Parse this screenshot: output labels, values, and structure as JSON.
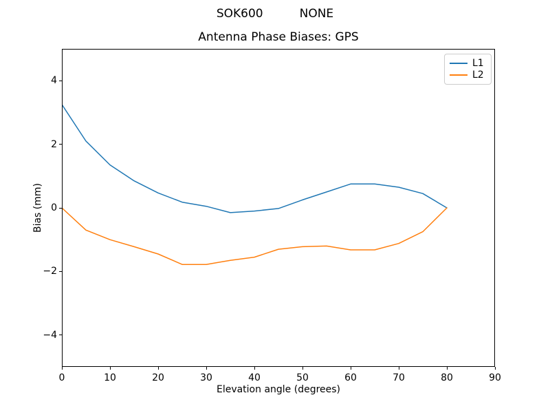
{
  "figure": {
    "suptitle_left": "SOK600",
    "suptitle_right": "NONE"
  },
  "chart_data": {
    "type": "line",
    "suptitle": "SOK600 NONE",
    "title": "Antenna Phase Biases: GPS",
    "xlabel": "Elevation angle (degrees)",
    "ylabel": "Bias (mm)",
    "xlim": [
      0,
      90
    ],
    "ylim": [
      -5,
      5
    ],
    "x_ticks": [
      0,
      10,
      20,
      30,
      40,
      50,
      60,
      70,
      80,
      90
    ],
    "y_ticks": [
      -4,
      -2,
      0,
      2,
      4
    ],
    "grid": false,
    "legend": {
      "position": "upper right",
      "entries": [
        "L1",
        "L2"
      ]
    },
    "x": [
      0,
      5,
      10,
      15,
      20,
      25,
      30,
      35,
      40,
      45,
      50,
      55,
      60,
      65,
      70,
      75,
      80
    ],
    "series": [
      {
        "name": "L1",
        "color": "#1f77b4",
        "values": [
          3.25,
          2.1,
          1.35,
          0.85,
          0.47,
          0.18,
          0.05,
          -0.15,
          -0.1,
          -0.02,
          0.25,
          0.5,
          0.75,
          0.75,
          0.65,
          0.45,
          0.0
        ]
      },
      {
        "name": "L2",
        "color": "#ff7f0e",
        "values": [
          0.0,
          -0.7,
          -1.0,
          -1.22,
          -1.45,
          -1.78,
          -1.78,
          -1.65,
          -1.55,
          -1.3,
          -1.22,
          -1.2,
          -1.32,
          -1.32,
          -1.12,
          -0.75,
          0.0
        ]
      }
    ]
  }
}
